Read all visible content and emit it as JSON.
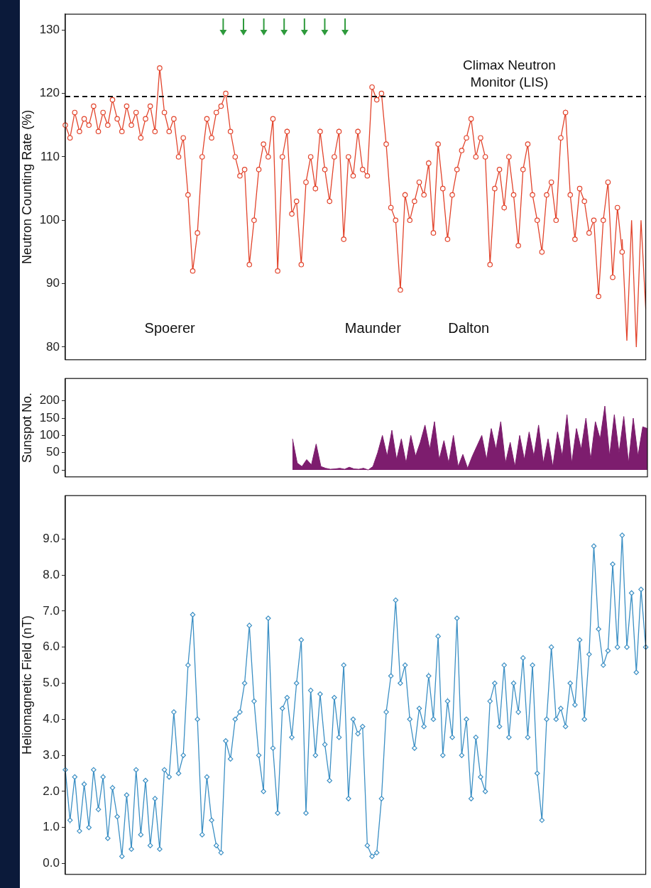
{
  "chart_data": [
    {
      "type": "line",
      "y_label": "Neutron Counting Rate (%)",
      "categories": [
        null,
        null,
        null,
        null,
        null,
        null,
        null,
        null,
        null,
        null,
        null,
        null,
        null,
        null,
        null,
        null,
        null,
        null,
        null,
        null,
        null,
        null,
        null,
        null,
        null,
        null,
        null,
        null,
        null,
        null,
        null,
        null,
        null,
        null,
        null,
        null,
        null,
        null,
        null,
        null,
        null,
        null,
        null,
        null,
        null,
        null,
        null,
        null,
        null,
        null,
        null,
        null,
        null,
        null,
        null,
        null,
        null,
        null,
        null,
        null,
        null,
        null,
        null,
        null,
        null,
        null,
        null,
        null,
        null,
        null,
        null,
        null,
        null,
        null,
        null,
        null,
        null,
        null,
        null,
        null,
        null,
        null,
        null,
        null,
        null,
        null,
        null,
        null,
        null,
        null,
        null,
        null,
        null,
        null,
        null,
        null,
        null,
        null,
        null,
        null,
        null,
        null,
        null,
        null,
        null,
        null,
        null,
        null,
        null,
        null,
        null,
        null,
        null,
        null,
        null,
        null,
        null,
        null,
        null,
        null,
        null,
        null,
        null,
        null
      ],
      "series": [
        {
          "color": "#e2432b",
          "marker": "circle",
          "line_style": "solid",
          "values": [
            115,
            113,
            117,
            114,
            116,
            115,
            118,
            114,
            117,
            115,
            119,
            116,
            114,
            118,
            115,
            117,
            113,
            116,
            118,
            114,
            124,
            117,
            114,
            116,
            110,
            113,
            104,
            92,
            98,
            110,
            116,
            113,
            117,
            118,
            120,
            114,
            110,
            107,
            108,
            93,
            100,
            108,
            112,
            110,
            116,
            92,
            110,
            114,
            101,
            103,
            93,
            106,
            110,
            105,
            114,
            108,
            103,
            110,
            114,
            97,
            110,
            107,
            114,
            108,
            107,
            121,
            119,
            120,
            112,
            102,
            100,
            89,
            104,
            100,
            103,
            106,
            104,
            109,
            98,
            112,
            105,
            97,
            104,
            108,
            111,
            113,
            116,
            110,
            113,
            110,
            93,
            105,
            108,
            102,
            110,
            104,
            96,
            108,
            112,
            104,
            100,
            95,
            104,
            106,
            100,
            113,
            117,
            104,
            97,
            105,
            103,
            98,
            100,
            88,
            100,
            106,
            91,
            102,
            95,
            null,
            null,
            null,
            null,
            null
          ]
        },
        {
          "color": "#e2432b",
          "marker": "none",
          "line_style": "solid",
          "values": [
            null,
            null,
            null,
            null,
            null,
            null,
            null,
            null,
            null,
            null,
            null,
            null,
            null,
            null,
            null,
            null,
            null,
            null,
            null,
            null,
            null,
            null,
            null,
            null,
            null,
            null,
            null,
            null,
            null,
            null,
            null,
            null,
            null,
            null,
            null,
            null,
            null,
            null,
            null,
            null,
            null,
            null,
            null,
            null,
            null,
            null,
            null,
            null,
            null,
            null,
            null,
            null,
            null,
            null,
            null,
            null,
            null,
            null,
            null,
            null,
            null,
            null,
            null,
            null,
            null,
            null,
            null,
            null,
            null,
            null,
            null,
            null,
            null,
            null,
            null,
            null,
            null,
            null,
            null,
            null,
            null,
            null,
            null,
            null,
            null,
            null,
            null,
            null,
            null,
            null,
            null,
            null,
            null,
            null,
            null,
            null,
            null,
            null,
            null,
            null,
            null,
            null,
            null,
            null,
            null,
            null,
            null,
            null,
            null,
            null,
            null,
            null,
            null,
            null,
            null,
            null,
            null,
            null,
            97,
            81,
            100,
            80,
            100,
            86
          ]
        }
      ],
      "ylim": [
        78,
        132.5
      ],
      "yticks": [
        80,
        90,
        100,
        110,
        120,
        130
      ],
      "grid": false,
      "tick_labels": "y",
      "reference_line": {
        "value": 119.5,
        "label": "Climax Neutron Monitor (LIS)",
        "line_style": "dashed"
      },
      "annotations": [
        "Spoerer",
        "Maunder",
        "Dalton"
      ]
    },
    {
      "type": "area",
      "y_label": "Sunspot No.",
      "categories": [
        null,
        null,
        null,
        null,
        null,
        null,
        null,
        null,
        null,
        null,
        null,
        null,
        null,
        null,
        null,
        null,
        null,
        null,
        null,
        null,
        null,
        null,
        null,
        null,
        null,
        null,
        null,
        null,
        null,
        null,
        null,
        null,
        null,
        null,
        null,
        null,
        null,
        null,
        null,
        null,
        null,
        null,
        null,
        null,
        null,
        null,
        null,
        null,
        null,
        null,
        null,
        null,
        null,
        null,
        null,
        null,
        null,
        null,
        null,
        null,
        null,
        null,
        null,
        null,
        null,
        null,
        null,
        null,
        null,
        null,
        null,
        null,
        null,
        null,
        null,
        null,
        null,
        null,
        null,
        null,
        null,
        null,
        null,
        null,
        null,
        null,
        null,
        null,
        null,
        null,
        null,
        null,
        null,
        null,
        null,
        null,
        null,
        null,
        null,
        null,
        null,
        null,
        null,
        null,
        null,
        null,
        null,
        null,
        null,
        null,
        null,
        null,
        null,
        null,
        null,
        null,
        null,
        null,
        null,
        null,
        null,
        null,
        null,
        null
      ],
      "series": [
        {
          "color": "#7d1d6e",
          "marker": "none",
          "values": [
            null,
            null,
            null,
            null,
            null,
            null,
            null,
            null,
            null,
            null,
            null,
            null,
            null,
            null,
            null,
            null,
            null,
            null,
            null,
            null,
            null,
            null,
            null,
            null,
            null,
            null,
            null,
            null,
            null,
            null,
            null,
            null,
            null,
            null,
            null,
            null,
            null,
            null,
            null,
            null,
            null,
            null,
            null,
            null,
            null,
            null,
            null,
            null,
            90,
            20,
            10,
            30,
            15,
            75,
            10,
            5,
            2,
            3,
            5,
            2,
            8,
            3,
            2,
            5,
            0,
            10,
            50,
            100,
            40,
            115,
            30,
            90,
            20,
            100,
            40,
            80,
            130,
            60,
            140,
            30,
            85,
            20,
            100,
            10,
            45,
            5,
            40,
            70,
            100,
            30,
            120,
            60,
            140,
            20,
            80,
            10,
            100,
            30,
            110,
            40,
            130,
            20,
            90,
            10,
            110,
            40,
            160,
            20,
            120,
            60,
            150,
            30,
            140,
            90,
            185,
            40,
            160,
            50,
            155,
            20,
            150,
            40,
            125,
            120
          ]
        }
      ],
      "ylim": [
        -20,
        265
      ],
      "yticks": [
        0,
        50,
        100,
        150,
        200
      ],
      "grid": false,
      "tick_labels": "y"
    },
    {
      "type": "line",
      "y_label": "Heliomagnetic Field (nT)",
      "categories": [
        null,
        null,
        null,
        null,
        null,
        null,
        null,
        null,
        null,
        null,
        null,
        null,
        null,
        null,
        null,
        null,
        null,
        null,
        null,
        null,
        null,
        null,
        null,
        null,
        null,
        null,
        null,
        null,
        null,
        null,
        null,
        null,
        null,
        null,
        null,
        null,
        null,
        null,
        null,
        null,
        null,
        null,
        null,
        null,
        null,
        null,
        null,
        null,
        null,
        null,
        null,
        null,
        null,
        null,
        null,
        null,
        null,
        null,
        null,
        null,
        null,
        null,
        null,
        null,
        null,
        null,
        null,
        null,
        null,
        null,
        null,
        null,
        null,
        null,
        null,
        null,
        null,
        null,
        null,
        null,
        null,
        null,
        null,
        null,
        null,
        null,
        null,
        null,
        null,
        null,
        null,
        null,
        null,
        null,
        null,
        null,
        null,
        null,
        null,
        null,
        null,
        null,
        null,
        null,
        null,
        null,
        null,
        null,
        null,
        null,
        null,
        null,
        null,
        null,
        null,
        null,
        null,
        null,
        null,
        null,
        null,
        null,
        null,
        null
      ],
      "series": [
        {
          "color": "#3b8fc4",
          "marker": "diamond",
          "line_style": "solid",
          "values": [
            2.6,
            1.2,
            2.4,
            0.9,
            2.2,
            1.0,
            2.6,
            1.5,
            2.4,
            0.7,
            2.1,
            1.3,
            0.2,
            1.9,
            0.4,
            2.6,
            0.8,
            2.3,
            0.5,
            1.8,
            0.4,
            2.6,
            2.4,
            4.2,
            2.5,
            3.0,
            5.5,
            6.9,
            4.0,
            0.8,
            2.4,
            1.2,
            0.5,
            0.3,
            3.4,
            2.9,
            4.0,
            4.2,
            5.0,
            6.6,
            4.5,
            3.0,
            2.0,
            6.8,
            3.2,
            1.4,
            4.3,
            4.6,
            3.5,
            5.0,
            6.2,
            1.4,
            4.8,
            3.0,
            4.7,
            3.3,
            2.3,
            4.6,
            3.5,
            5.5,
            1.8,
            4.0,
            3.6,
            3.8,
            0.5,
            0.2,
            0.3,
            1.8,
            4.2,
            5.2,
            7.3,
            5.0,
            5.5,
            4.0,
            3.2,
            4.3,
            3.8,
            5.2,
            4.0,
            6.3,
            3.0,
            4.5,
            3.5,
            6.8,
            3.0,
            4.0,
            1.8,
            3.5,
            2.4,
            2.0,
            4.5,
            5.0,
            3.8,
            5.5,
            3.5,
            5.0,
            4.2,
            5.7,
            3.5,
            5.5,
            2.5,
            1.2,
            4.0,
            6.0,
            4.0,
            4.3,
            3.8,
            5.0,
            4.4,
            6.2,
            4.0,
            5.8,
            8.8,
            6.5,
            5.5,
            5.9,
            8.3,
            6.0,
            9.1,
            6.0,
            7.5,
            5.3,
            7.6,
            6.0
          ]
        }
      ],
      "ylim": [
        -0.3,
        10.2
      ],
      "yticks": [
        {
          "value": 0,
          "label": "0.0"
        },
        {
          "value": 1,
          "label": "1.0"
        },
        {
          "value": 2,
          "label": "2.0"
        },
        {
          "value": 3,
          "label": "3.0"
        },
        {
          "value": 4,
          "label": "4.0"
        },
        {
          "value": 5,
          "label": "5.0"
        },
        {
          "value": 6,
          "label": "6.0"
        },
        {
          "value": 7,
          "label": "7.0"
        },
        {
          "value": 8,
          "label": "8.0"
        },
        {
          "value": 9,
          "label": "9.0"
        }
      ],
      "grid": false,
      "tick_labels": "y"
    }
  ]
}
